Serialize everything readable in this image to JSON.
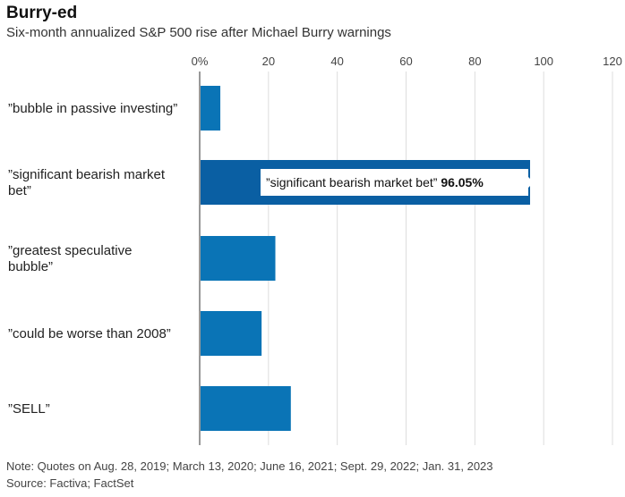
{
  "header": {
    "title": "Burry-ed",
    "subtitle": "Six-month annualized S&P 500 rise after Michael Burry warnings"
  },
  "footer": {
    "note": "Note: Quotes on Aug. 28, 2019; March 13, 2020; June 16, 2021; Sept. 29, 2022; Jan. 31, 2023",
    "source": "Source: Factiva; FactSet"
  },
  "tooltip": {
    "label": "”significant bearish market bet”",
    "value": "96.05%"
  },
  "colors": {
    "bar": "#0a74b6",
    "bar_highlight": "#0a5fa3",
    "grid": "#dddddd",
    "axis": "#333333",
    "tooltip_bg": "#ffffff"
  },
  "chart_data": {
    "type": "bar",
    "orientation": "horizontal",
    "categories": [
      [
        "”bubble in passive investing”"
      ],
      [
        "”significant bearish market",
        "bet”"
      ],
      [
        "”greatest speculative",
        "bubble”"
      ],
      [
        "”could be worse than 2008”"
      ],
      [
        "”SELL”"
      ]
    ],
    "values": [
      6,
      96.05,
      22,
      18,
      26.5
    ],
    "xlim": [
      0,
      120
    ],
    "xticks": [
      0,
      20,
      40,
      60,
      80,
      100,
      120
    ],
    "xtick_labels": [
      "0%",
      "20",
      "40",
      "60",
      "80",
      "100",
      "120"
    ],
    "highlight_index": 1
  }
}
